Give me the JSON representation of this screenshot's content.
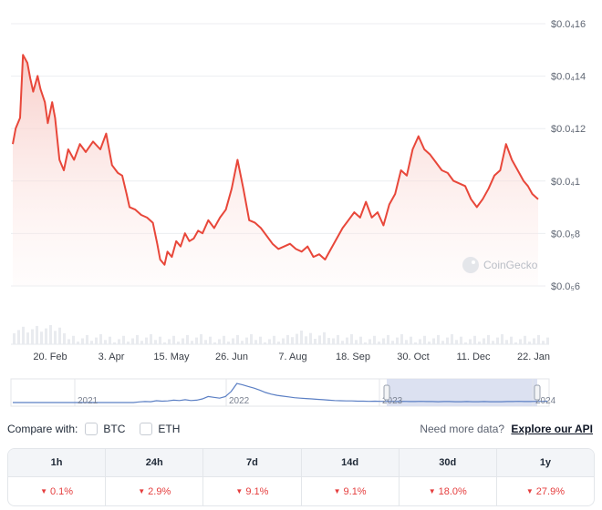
{
  "chart_data": {
    "type": "area",
    "y_tick_labels": [
      "$0.0₄16",
      "$0.0₄14",
      "$0.0₄12",
      "$0.0₄1",
      "$0.0₅8",
      "$0.0₅6"
    ],
    "y_ticks": [
      1.6,
      1.4,
      1.2,
      1.0,
      0.8,
      0.6
    ],
    "y_unit_note": "values in units of 1e-5 USD",
    "ylim": [
      0.6,
      1.6
    ],
    "x_tick_labels": [
      "20. Feb",
      "3. Apr",
      "15. May",
      "26. Jun",
      "7. Aug",
      "18. Sep",
      "30. Oct",
      "11. Dec",
      "22. Jan"
    ],
    "series": [
      {
        "x": [
          0,
          2,
          5,
          7,
          10,
          12,
          14,
          17,
          19,
          22,
          24,
          27,
          29,
          32,
          35,
          38,
          42,
          46,
          50,
          55,
          60,
          64,
          68,
          72,
          75,
          78,
          80,
          84,
          88,
          92,
          96,
          99,
          101,
          104,
          106,
          109,
          112,
          115,
          118,
          121,
          124,
          127,
          130,
          134,
          138,
          142,
          146,
          150,
          154,
          158,
          162,
          166,
          170,
          174,
          178,
          182,
          186,
          190,
          194,
          198,
          202,
          206,
          210,
          214,
          218,
          222,
          226,
          230,
          234,
          238,
          242,
          246,
          250,
          254,
          258,
          262,
          266,
          270,
          274,
          278,
          282,
          286,
          290,
          294,
          298,
          302,
          306,
          310,
          314,
          318,
          322,
          326,
          330,
          334,
          338,
          342,
          346,
          350,
          353,
          356,
          360
        ],
        "values": [
          1.12,
          1.18,
          1.22,
          1.46,
          1.43,
          1.37,
          1.32,
          1.38,
          1.33,
          1.28,
          1.2,
          1.28,
          1.22,
          1.06,
          1.02,
          1.1,
          1.06,
          1.12,
          1.09,
          1.13,
          1.1,
          1.16,
          1.04,
          1.01,
          1.0,
          0.93,
          0.88,
          0.87,
          0.85,
          0.84,
          0.82,
          0.74,
          0.68,
          0.66,
          0.71,
          0.69,
          0.75,
          0.73,
          0.78,
          0.75,
          0.76,
          0.79,
          0.78,
          0.83,
          0.8,
          0.84,
          0.87,
          0.95,
          1.06,
          0.95,
          0.83,
          0.82,
          0.8,
          0.77,
          0.74,
          0.72,
          0.73,
          0.74,
          0.72,
          0.71,
          0.73,
          0.69,
          0.7,
          0.68,
          0.72,
          0.76,
          0.8,
          0.83,
          0.86,
          0.84,
          0.9,
          0.84,
          0.86,
          0.81,
          0.89,
          0.93,
          1.02,
          1.0,
          1.1,
          1.15,
          1.1,
          1.08,
          1.05,
          1.02,
          1.01,
          0.98,
          0.97,
          0.96,
          0.91,
          0.88,
          0.91,
          0.95,
          1.0,
          1.02,
          1.12,
          1.06,
          1.02,
          0.98,
          0.96,
          0.93,
          0.91
        ]
      }
    ],
    "navigator": {
      "x_tick_labels": [
        "2021",
        "2022",
        "2023",
        "2024"
      ],
      "values": [
        0.0,
        0.0,
        0.0,
        0.0,
        0.0,
        0.0,
        0.0,
        0.0,
        0.0,
        0.0,
        0.0,
        0.0,
        0.0,
        0.0,
        0.0,
        0.0,
        0.0,
        0.0,
        0.0,
        0.0,
        0.0,
        0.0,
        0.03,
        0.05,
        0.04,
        0.09,
        0.07,
        0.08,
        0.12,
        0.1,
        0.14,
        0.1,
        0.12,
        0.18,
        0.3,
        0.26,
        0.22,
        0.3,
        0.55,
        0.95,
        0.88,
        0.8,
        0.72,
        0.62,
        0.5,
        0.42,
        0.36,
        0.32,
        0.28,
        0.24,
        0.22,
        0.2,
        0.18,
        0.16,
        0.14,
        0.12,
        0.1,
        0.09,
        0.08,
        0.08,
        0.07,
        0.07,
        0.06,
        0.07,
        0.06,
        0.06,
        0.06,
        0.05,
        0.06,
        0.05,
        0.05,
        0.06,
        0.05,
        0.05,
        0.04,
        0.05,
        0.05,
        0.04,
        0.04,
        0.05,
        0.04,
        0.04,
        0.05,
        0.04,
        0.04,
        0.04,
        0.05,
        0.05,
        0.06,
        0.05,
        0.05,
        0.06,
        0.06,
        0.07
      ]
    },
    "watermark": "CoinGecko",
    "colors": {
      "line": "#e8473a",
      "fill_top": "#f7c9c4",
      "navigator_line": "#5b7fc4",
      "navigator_selection": "#d6dcef"
    }
  },
  "compare": {
    "label": "Compare with:",
    "options": [
      "BTC",
      "ETH"
    ],
    "need_more_text": "Need more data?",
    "explore_link": "Explore our API"
  },
  "performance": {
    "headers": [
      "1h",
      "24h",
      "7d",
      "14d",
      "30d",
      "1y"
    ],
    "values": [
      "0.1%",
      "2.9%",
      "9.1%",
      "9.1%",
      "18.0%",
      "27.9%"
    ],
    "down_color": "#e53e3e"
  }
}
